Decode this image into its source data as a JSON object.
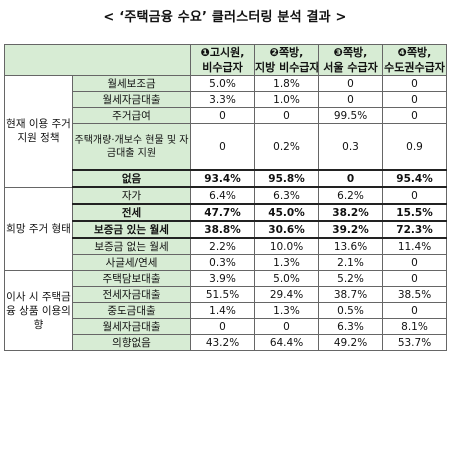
{
  "title": "< ‘주택금융 수요’ 클러스터링 분석 결과 >",
  "columns": [
    {
      "line1": "❶고시원,",
      "line2": "비수급자"
    },
    {
      "line1": "❷쪽방,",
      "line2": "지방 비수급자"
    },
    {
      "line1": "❸쪽방,",
      "line2": "서울 수급자"
    },
    {
      "line1": "❹쪽방,",
      "line2": "수도권수급자"
    }
  ],
  "groups": [
    {
      "label": "현재 이용 주거 지원 정책",
      "rows": [
        {
          "label": "월세보조금",
          "values": [
            "5.0%",
            "1.8%",
            "0",
            "0"
          ]
        },
        {
          "label": "월세자금대출",
          "values": [
            "3.3%",
            "1.0%",
            "0",
            "0"
          ]
        },
        {
          "label": "주거급여",
          "values": [
            "0",
            "0",
            "99.5%",
            "0"
          ]
        },
        {
          "label": "주택개량·개보수 현물 및 자금대출 지원",
          "values": [
            "0",
            "0.2%",
            "0.3",
            "0.9"
          ]
        },
        {
          "label": "없음",
          "values": [
            "93.4%",
            "95.8%",
            "0",
            "95.4%"
          ]
        }
      ]
    },
    {
      "label": "희망 주거 형태",
      "rows": [
        {
          "label": "자가",
          "values": [
            "6.4%",
            "6.3%",
            "6.2%",
            "0"
          ]
        },
        {
          "label": "전세",
          "values": [
            "47.7%",
            "45.0%",
            "38.2%",
            "15.5%"
          ]
        },
        {
          "label": "보증금 있는 월세",
          "values": [
            "38.8%",
            "30.6%",
            "39.2%",
            "72.3%"
          ]
        },
        {
          "label": "보증금 없는 월세",
          "values": [
            "2.2%",
            "10.0%",
            "13.6%",
            "11.4%"
          ]
        },
        {
          "label": "사글세/연세",
          "values": [
            "0.3%",
            "1.3%",
            "2.1%",
            "0"
          ]
        }
      ]
    },
    {
      "label": "이사 시 주택금융 상품 이용의향",
      "rows": [
        {
          "label": "주택담보대출",
          "values": [
            "3.9%",
            "5.0%",
            "5.2%",
            "0"
          ]
        },
        {
          "label": "전세자금대출",
          "values": [
            "51.5%",
            "29.4%",
            "38.7%",
            "38.5%"
          ]
        },
        {
          "label": "중도금대출",
          "values": [
            "1.4%",
            "1.3%",
            "0.5%",
            "0"
          ]
        },
        {
          "label": "월세자금대출",
          "values": [
            "0",
            "0",
            "6.3%",
            "8.1%"
          ]
        },
        {
          "label": "의향없음",
          "values": [
            "43.2%",
            "64.4%",
            "49.2%",
            "53.7%"
          ]
        }
      ]
    }
  ],
  "colors": {
    "header_bg": "#d7ecd4",
    "border": "#666666"
  }
}
